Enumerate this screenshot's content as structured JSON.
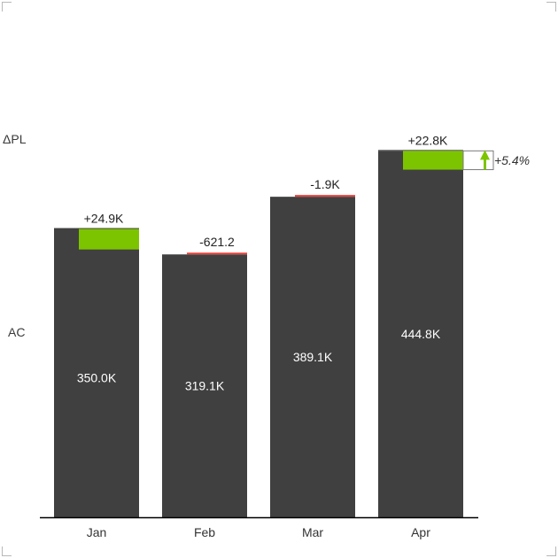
{
  "row_labels": {
    "delta": "ΔPL",
    "actual": "AC"
  },
  "chart_data": {
    "type": "bar",
    "categories": [
      "Jan",
      "Feb",
      "Mar",
      "Apr"
    ],
    "series": [
      {
        "name": "AC",
        "values": [
          350.0,
          319.1,
          389.1,
          444.8
        ],
        "labels": [
          "350.0K",
          "319.1K",
          "389.1K",
          "444.8K"
        ]
      },
      {
        "name": "ΔPL",
        "values": [
          24.9,
          -0.6212,
          -1.9,
          22.8
        ],
        "labels": [
          "+24.9K",
          "-621.2",
          "-1.9K",
          "+22.8K"
        ]
      }
    ],
    "total_delta": {
      "value": 5.4,
      "label": "+5.4%"
    },
    "ylim": [
      0,
      470
    ],
    "colors": {
      "bar": "#404040",
      "positive": "#7dc400",
      "negative": "#e8413a",
      "axis": "#000000"
    }
  }
}
